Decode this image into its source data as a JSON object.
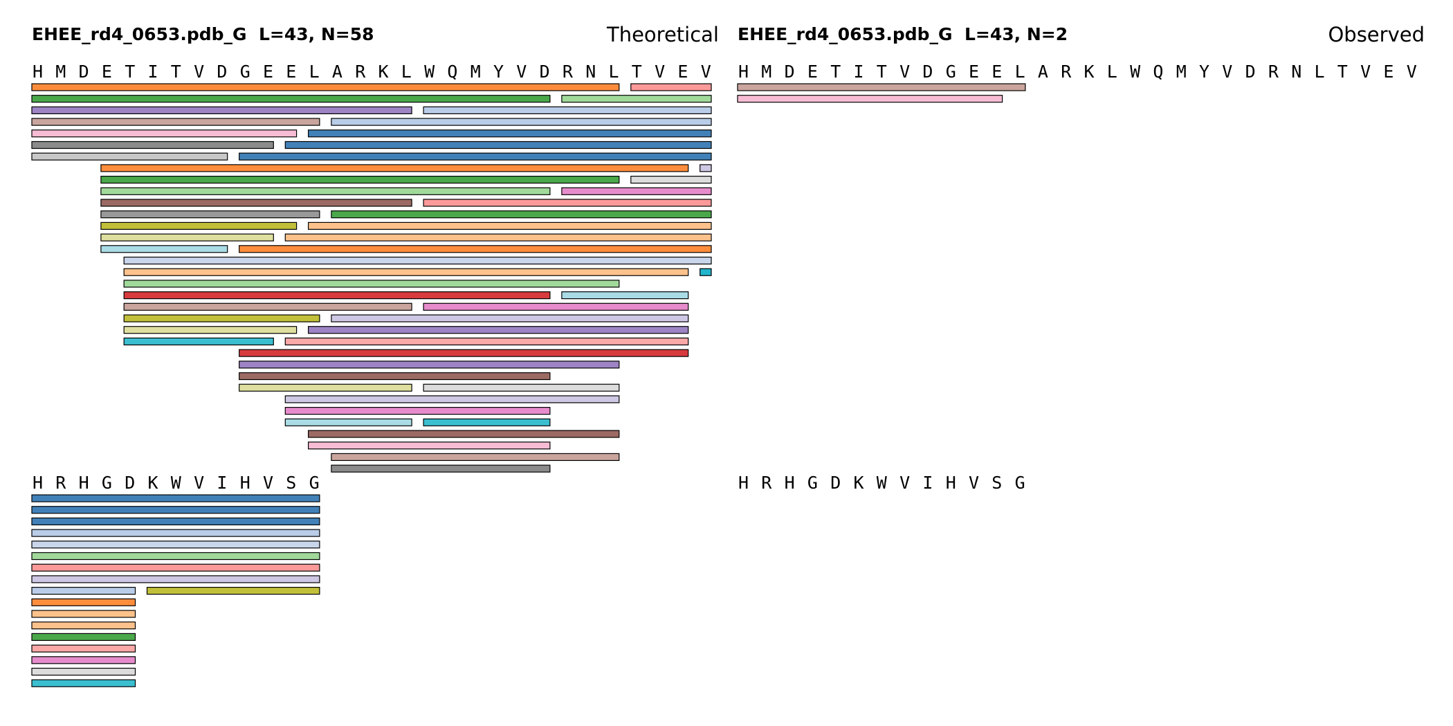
{
  "panels": [
    {
      "id": "theoretical",
      "title": "EHEE_rd4_0653.pdb_G  L=43, N=58",
      "label": "Theoretical",
      "rows": [
        {
          "sequence": "HMDETITVDGEELARKLWQMYVDRNLTVEV",
          "start": 0,
          "fragments": [
            {
              "start": 0,
              "end": 25,
              "color": "#fd8d3c"
            },
            {
              "start": 26,
              "end": 29,
              "color": "#fb9a99"
            },
            {
              "start": 0,
              "end": 22,
              "color": "#4aa84a"
            },
            {
              "start": 23,
              "end": 29,
              "color": "#a1d99b"
            },
            {
              "start": 0,
              "end": 16,
              "color": "#9e84c4"
            },
            {
              "start": 17,
              "end": 29,
              "color": "#b9cde8"
            },
            {
              "start": 0,
              "end": 12,
              "color": "#c9a59d"
            },
            {
              "start": 13,
              "end": 29,
              "color": "#b9cde8"
            },
            {
              "start": 0,
              "end": 11,
              "color": "#f7bcd4"
            },
            {
              "start": 12,
              "end": 29,
              "color": "#4281b8"
            },
            {
              "start": 0,
              "end": 10,
              "color": "#8b8b8b"
            },
            {
              "start": 11,
              "end": 29,
              "color": "#4281b8"
            },
            {
              "start": 0,
              "end": 8,
              "color": "#c8c8c8"
            },
            {
              "start": 9,
              "end": 29,
              "color": "#4281b8"
            },
            {
              "start": 3,
              "end": 28,
              "color": "#fd8d3c"
            },
            {
              "start": 29,
              "end": 29,
              "color": "#cfc8e4"
            },
            {
              "start": 3,
              "end": 25,
              "color": "#4aa84a"
            },
            {
              "start": 26,
              "end": 29,
              "color": "#dcdcdc"
            },
            {
              "start": 3,
              "end": 22,
              "color": "#a1d99b"
            },
            {
              "start": 23,
              "end": 29,
              "color": "#e68ccc"
            },
            {
              "start": 3,
              "end": 16,
              "color": "#9c6a64"
            },
            {
              "start": 17,
              "end": 29,
              "color": "#fb9a99"
            },
            {
              "start": 3,
              "end": 12,
              "color": "#999999"
            },
            {
              "start": 13,
              "end": 29,
              "color": "#4aa84a"
            },
            {
              "start": 3,
              "end": 11,
              "color": "#c2c03a"
            },
            {
              "start": 12,
              "end": 29,
              "color": "#fdc28c"
            },
            {
              "start": 3,
              "end": 10,
              "color": "#dfe0a0"
            },
            {
              "start": 11,
              "end": 29,
              "color": "#fdc28c"
            },
            {
              "start": 3,
              "end": 8,
              "color": "#aadce6"
            },
            {
              "start": 9,
              "end": 29,
              "color": "#fd8d3c"
            },
            {
              "start": 4,
              "end": 29,
              "color": "#c9d5ea"
            },
            {
              "start": 4,
              "end": 28,
              "color": "#fdc28c"
            },
            {
              "start": 29,
              "end": 29,
              "color": "#22b5cc"
            },
            {
              "start": 4,
              "end": 25,
              "color": "#a1d99b"
            },
            {
              "start": 4,
              "end": 22,
              "color": "#d83b3e"
            },
            {
              "start": 23,
              "end": 28,
              "color": "#aadce6"
            },
            {
              "start": 4,
              "end": 16,
              "color": "#c9a59d"
            },
            {
              "start": 17,
              "end": 28,
              "color": "#e68ccc"
            },
            {
              "start": 4,
              "end": 12,
              "color": "#c2c03a"
            },
            {
              "start": 13,
              "end": 28,
              "color": "#cfc8e4"
            },
            {
              "start": 4,
              "end": 11,
              "color": "#dfe0a0"
            },
            {
              "start": 12,
              "end": 28,
              "color": "#9e84c4"
            },
            {
              "start": 4,
              "end": 10,
              "color": "#3bbfd0"
            },
            {
              "start": 11,
              "end": 28,
              "color": "#fba9a8"
            },
            {
              "start": 9,
              "end": 28,
              "color": "#d83b3e"
            },
            {
              "start": 9,
              "end": 25,
              "color": "#9e84c4"
            },
            {
              "start": 9,
              "end": 22,
              "color": "#9c6a64"
            },
            {
              "start": 9,
              "end": 16,
              "color": "#dfe0a0"
            },
            {
              "start": 17,
              "end": 25,
              "color": "#dcdcdc"
            },
            {
              "start": 11,
              "end": 25,
              "color": "#cfc8e4"
            },
            {
              "start": 11,
              "end": 22,
              "color": "#e68ccc"
            },
            {
              "start": 11,
              "end": 16,
              "color": "#aadce6"
            },
            {
              "start": 17,
              "end": 22,
              "color": "#3bbfd0"
            },
            {
              "start": 12,
              "end": 25,
              "color": "#9c6a64"
            },
            {
              "start": 12,
              "end": 22,
              "color": "#f7bcd4"
            },
            {
              "start": 13,
              "end": 25,
              "color": "#c9a59d"
            },
            {
              "start": 13,
              "end": 22,
              "color": "#8b8b8b"
            }
          ],
          "fragment_lanes": [
            0,
            0,
            1,
            1,
            2,
            2,
            3,
            3,
            4,
            4,
            5,
            5,
            6,
            6,
            7,
            7,
            8,
            8,
            9,
            9,
            10,
            10,
            11,
            11,
            12,
            12,
            13,
            13,
            14,
            14,
            15,
            16,
            16,
            17,
            18,
            18,
            19,
            19,
            20,
            20,
            21,
            21,
            22,
            22,
            23,
            24,
            25,
            26,
            26,
            27,
            28,
            29,
            29,
            30,
            31,
            32,
            33
          ]
        },
        {
          "sequence": "HRHGDKWVIHVSG",
          "start": 30,
          "fragments": [
            {
              "start": 0,
              "end": 12,
              "color": "#4281b8"
            },
            {
              "start": 0,
              "end": 12,
              "color": "#4281b8"
            },
            {
              "start": 0,
              "end": 12,
              "color": "#4281b8"
            },
            {
              "start": 0,
              "end": 12,
              "color": "#b9cde8"
            },
            {
              "start": 0,
              "end": 12,
              "color": "#c9d5ea"
            },
            {
              "start": 0,
              "end": 12,
              "color": "#a1d99b"
            },
            {
              "start": 0,
              "end": 12,
              "color": "#fb9a99"
            },
            {
              "start": 0,
              "end": 12,
              "color": "#cfc8e4"
            },
            {
              "start": 0,
              "end": 4,
              "color": "#b9cde8"
            },
            {
              "start": 5,
              "end": 12,
              "color": "#c2c03a"
            },
            {
              "start": 0,
              "end": 4,
              "color": "#fd8d3c"
            },
            {
              "start": 0,
              "end": 4,
              "color": "#fdc28c"
            },
            {
              "start": 0,
              "end": 4,
              "color": "#fdc28c"
            },
            {
              "start": 0,
              "end": 4,
              "color": "#4aa84a"
            },
            {
              "start": 0,
              "end": 4,
              "color": "#fba9a8"
            },
            {
              "start": 0,
              "end": 4,
              "color": "#e68ccc"
            },
            {
              "start": 0,
              "end": 4,
              "color": "#dcdcdc"
            },
            {
              "start": 0,
              "end": 4,
              "color": "#3bbfd0"
            }
          ],
          "fragment_lanes": [
            0,
            1,
            2,
            3,
            4,
            5,
            6,
            7,
            8,
            8,
            9,
            10,
            11,
            12,
            13,
            14,
            15,
            16
          ]
        }
      ]
    },
    {
      "id": "observed",
      "title": "EHEE_rd4_0653.pdb_G  L=43, N=2",
      "label": "Observed",
      "rows": [
        {
          "sequence": "HMDETITVDGEELARKLWQMYVDRNLTVEV",
          "start": 0,
          "fragments": [
            {
              "start": 0,
              "end": 12,
              "color": "#c9a59d"
            },
            {
              "start": 0,
              "end": 11,
              "color": "#f7bcd4"
            }
          ],
          "fragment_lanes": [
            0,
            1
          ]
        },
        {
          "sequence": "HRHGDKWVIHVSG",
          "start": 30,
          "fragments": [],
          "fragment_lanes": []
        }
      ]
    }
  ]
}
